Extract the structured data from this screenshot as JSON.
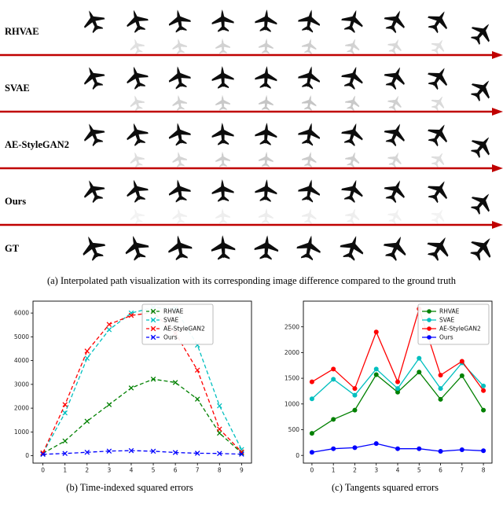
{
  "figure": {
    "panel_a": {
      "rows": [
        {
          "label": "RHVAE",
          "type": "method",
          "diff_opacity": 0.42
        },
        {
          "label": "SVAE",
          "type": "method",
          "diff_opacity": 0.5
        },
        {
          "label": "AE-StyleGAN2",
          "type": "method",
          "diff_opacity": 0.45
        },
        {
          "label": "Ours",
          "type": "method",
          "diff_opacity": 0.16
        },
        {
          "label": "GT",
          "type": "gt",
          "diff_opacity": 0
        }
      ],
      "num_steps": 10,
      "arrow_color": "#c00000",
      "plane_color": "#0d0d0d",
      "diff_color": "#8a8a8a"
    },
    "captions": {
      "a": "(a) Interpolated path visualization with its corresponding image difference compared to the ground truth",
      "b": "(b) Time-indexed squared errors",
      "c": "(c) Tangents squared errors"
    }
  },
  "chart_data": [
    {
      "id": "chart-b",
      "type": "line",
      "title": "",
      "xlabel": "",
      "ylabel": "",
      "x": [
        0,
        1,
        2,
        3,
        4,
        5,
        6,
        7,
        8,
        9
      ],
      "xlim": [
        -0.45,
        9.45
      ],
      "ylim": [
        -310,
        6500
      ],
      "x_ticks": [
        0,
        1,
        2,
        3,
        4,
        5,
        6,
        7,
        8,
        9
      ],
      "y_ticks": [
        0,
        1000,
        2000,
        3000,
        4000,
        5000,
        6000
      ],
      "grid": false,
      "line_style": "dashed",
      "marker": "x",
      "legend_pos": "upper-center",
      "series": [
        {
          "name": "RHVAE",
          "color": "#008000",
          "values": [
            100,
            620,
            1450,
            2150,
            2850,
            3220,
            3080,
            2380,
            950,
            120
          ]
        },
        {
          "name": "SVAE",
          "color": "#00bfbf",
          "values": [
            110,
            1800,
            4100,
            5300,
            6000,
            6230,
            6180,
            4650,
            2100,
            260
          ]
        },
        {
          "name": "AE-StyleGAN2",
          "color": "#ff0000",
          "values": [
            120,
            2150,
            4400,
            5520,
            5900,
            6020,
            5150,
            3600,
            1120,
            160
          ]
        },
        {
          "name": "Ours",
          "color": "#0000ff",
          "values": [
            60,
            95,
            145,
            195,
            215,
            190,
            135,
            105,
            95,
            65
          ]
        }
      ]
    },
    {
      "id": "chart-c",
      "type": "line",
      "title": "",
      "xlabel": "",
      "ylabel": "",
      "x": [
        0,
        1,
        2,
        3,
        4,
        5,
        6,
        7,
        8
      ],
      "xlim": [
        -0.4,
        8.4
      ],
      "ylim": [
        -150,
        3000
      ],
      "x_ticks": [
        0,
        1,
        2,
        3,
        4,
        5,
        6,
        7,
        8
      ],
      "y_ticks": [
        0,
        500,
        1000,
        1500,
        2000,
        2500
      ],
      "grid": false,
      "line_style": "solid",
      "marker": "o",
      "legend_pos": "upper-right",
      "series": [
        {
          "name": "RHVAE",
          "color": "#008000",
          "values": [
            430,
            700,
            880,
            1570,
            1230,
            1620,
            1090,
            1550,
            880
          ]
        },
        {
          "name": "SVAE",
          "color": "#00bfbf",
          "values": [
            1100,
            1480,
            1170,
            1680,
            1300,
            1890,
            1300,
            1800,
            1350
          ]
        },
        {
          "name": "AE-StyleGAN2",
          "color": "#ff0000",
          "values": [
            1430,
            1680,
            1300,
            2400,
            1430,
            2850,
            1560,
            1830,
            1260
          ]
        },
        {
          "name": "Ours",
          "color": "#0000ff",
          "values": [
            60,
            130,
            150,
            230,
            130,
            130,
            80,
            110,
            90
          ]
        }
      ]
    }
  ]
}
